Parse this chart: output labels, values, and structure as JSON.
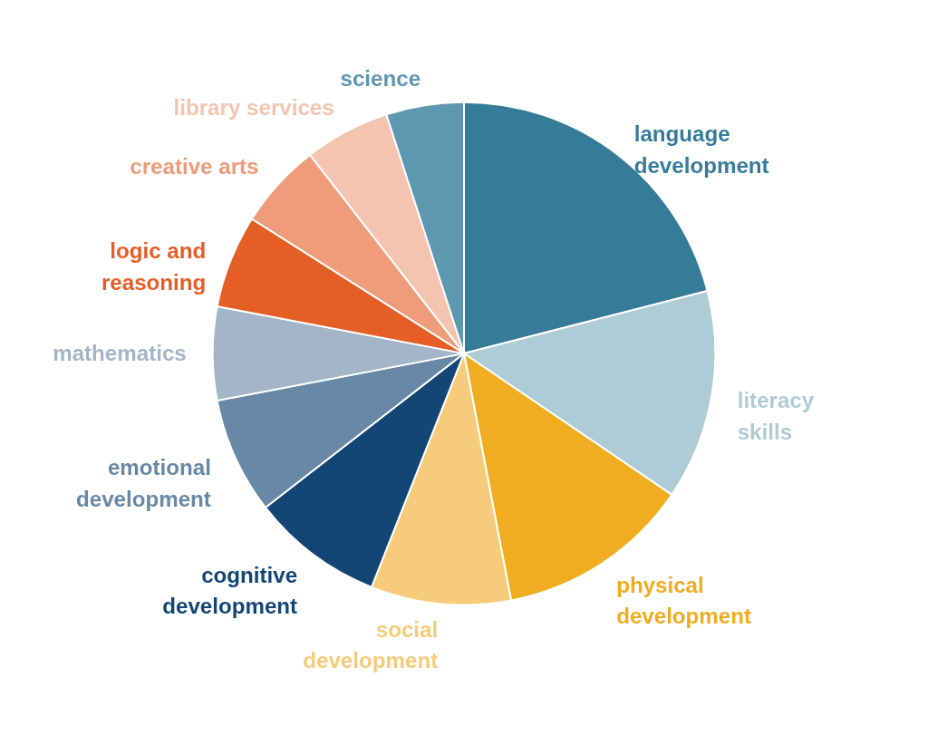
{
  "chart_data": {
    "type": "pie",
    "categories": [
      "language\ndevelopment",
      "literacy\nskills",
      "physical\ndevelopment",
      "social\ndevelopment",
      "cognitive\ndevelopment",
      "emotional\ndevelopment",
      "mathematics",
      "logic and\nreasoning",
      "creative arts",
      "library services",
      "science"
    ],
    "values": [
      21,
      13.5,
      12.5,
      9,
      8.5,
      7.5,
      6,
      6,
      5.5,
      5.5,
      5
    ],
    "colors": [
      "#367c99",
      "#aecbd6",
      "#f0ad1f",
      "#f6cc7a",
      "#144675",
      "#6788a6",
      "#a3b5c8",
      "#e55e26",
      "#ee9c79",
      "#f5c4ae",
      "#5e97b0"
    ]
  }
}
